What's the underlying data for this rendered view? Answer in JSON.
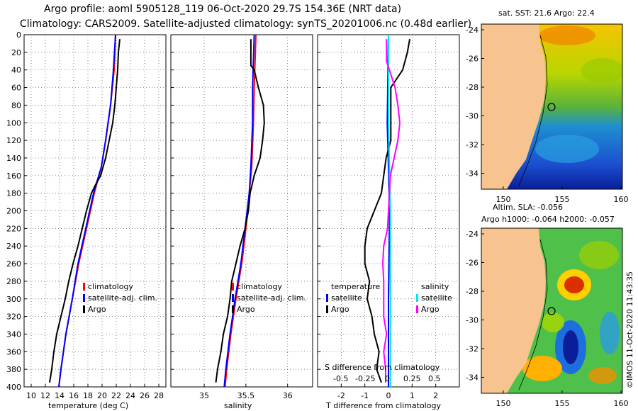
{
  "header": {
    "line1": "Argo profile: aoml 5905128_119 06-Oct-2020 29.7S 154.36E (NRT data)",
    "line2": "Climatology: CARS2009. Satellite-adjusted climatology: synTS_20201006.nc (0.48d earlier)"
  },
  "colors": {
    "climatology": "#ff0000",
    "satellite": "#0000ff",
    "argo": "#000000",
    "sat_salinity": "#00e5ff",
    "argo_salinity": "#ff00ff",
    "land": "#f7c38e"
  },
  "chart_data": [
    {
      "type": "line",
      "id": "temperature",
      "xlabel": "temperature (deg C)",
      "ylabel": "",
      "xlim": [
        9,
        29
      ],
      "ylim": [
        400,
        0
      ],
      "xticks": [
        10,
        12,
        14,
        16,
        18,
        20,
        22,
        24,
        26,
        28
      ],
      "yticks": [
        0,
        20,
        40,
        60,
        80,
        100,
        120,
        140,
        160,
        180,
        200,
        220,
        240,
        260,
        280,
        300,
        320,
        340,
        360,
        380,
        400
      ],
      "legend": [
        "climatology",
        "satellite-adj. clim.",
        "Argo"
      ],
      "series": [
        {
          "name": "climatology",
          "color": "#ff0000",
          "depth": [
            0,
            40,
            80,
            120,
            150,
            180,
            220,
            260,
            300,
            340,
            380,
            400
          ],
          "values": [
            21.9,
            21.7,
            21.2,
            20.5,
            19.9,
            18.9,
            17.8,
            16.7,
            15.8,
            14.9,
            14.2,
            13.9
          ]
        },
        {
          "name": "satellite-adj. clim.",
          "color": "#0000ff",
          "depth": [
            0,
            40,
            80,
            120,
            150,
            180,
            220,
            260,
            300,
            340,
            380,
            400
          ],
          "values": [
            21.9,
            21.6,
            21.2,
            20.5,
            19.9,
            18.8,
            17.7,
            16.6,
            15.8,
            14.9,
            14.2,
            13.9
          ]
        },
        {
          "name": "Argo",
          "color": "#000000",
          "depth": [
            5,
            20,
            40,
            60,
            80,
            100,
            120,
            140,
            160,
            170,
            180,
            200,
            220,
            240,
            260,
            280,
            300,
            320,
            340,
            360,
            380,
            395
          ],
          "values": [
            22.5,
            22.3,
            22.2,
            22.0,
            21.8,
            21.5,
            21.0,
            20.5,
            19.8,
            19.1,
            18.5,
            17.8,
            17.2,
            16.6,
            15.9,
            15.3,
            14.8,
            14.2,
            13.6,
            13.2,
            12.9,
            12.6
          ]
        }
      ]
    },
    {
      "type": "line",
      "id": "salinity",
      "xlabel": "salinity",
      "ylabel": "",
      "xlim": [
        34.6,
        36.3
      ],
      "ylim": [
        400,
        0
      ],
      "xticks": [
        35,
        35.5,
        36
      ],
      "legend": [
        "climatology",
        "satellite-adj. clim.",
        "Argo"
      ],
      "series": [
        {
          "name": "climatology",
          "color": "#ff0000",
          "depth": [
            0,
            60,
            100,
            150,
            180,
            220,
            260,
            300,
            340,
            380,
            400
          ],
          "values": [
            35.62,
            35.6,
            35.59,
            35.57,
            35.54,
            35.5,
            35.45,
            35.38,
            35.32,
            35.27,
            35.25
          ]
        },
        {
          "name": "satellite-adj. clim.",
          "color": "#0000ff",
          "depth": [
            0,
            60,
            100,
            150,
            180,
            220,
            260,
            300,
            340,
            380,
            400
          ],
          "values": [
            35.6,
            35.58,
            35.58,
            35.56,
            35.54,
            35.49,
            35.44,
            35.37,
            35.31,
            35.26,
            35.24
          ]
        },
        {
          "name": "Argo",
          "color": "#000000",
          "depth": [
            5,
            20,
            35,
            40,
            60,
            80,
            100,
            120,
            140,
            160,
            180,
            200,
            220,
            240,
            260,
            280,
            300,
            320,
            340,
            360,
            380,
            395
          ],
          "values": [
            35.56,
            35.56,
            35.56,
            35.6,
            35.65,
            35.71,
            35.72,
            35.7,
            35.67,
            35.6,
            35.55,
            35.53,
            35.49,
            35.43,
            35.38,
            35.33,
            35.31,
            35.28,
            35.23,
            35.2,
            35.16,
            35.14
          ]
        }
      ]
    },
    {
      "type": "line",
      "id": "difference",
      "xlabel": "T difference from climatology",
      "ylabel": "",
      "xlim": [
        -3,
        3
      ],
      "ylim": [
        400,
        0
      ],
      "xticks": [
        -2,
        -1,
        0,
        1,
        2
      ],
      "top_axis_label": "S difference from climatology",
      "top_ticks": [
        "-0.5",
        "-0.25",
        "0",
        "0.25",
        "0.5"
      ],
      "legend_temperature_title": "temperature",
      "legend_salinity_title": "salinity",
      "legend_temperature": [
        "satellite",
        "Argo"
      ],
      "legend_salinity": [
        "satellite",
        "Argo"
      ],
      "series": [
        {
          "name": "T satellite",
          "color": "#0000ff",
          "depth": [
            0,
            100,
            200,
            300,
            400
          ],
          "values": [
            0.0,
            -0.05,
            0.05,
            0.0,
            0.0
          ]
        },
        {
          "name": "T Argo",
          "color": "#000000",
          "depth": [
            5,
            20,
            40,
            60,
            80,
            100,
            120,
            140,
            160,
            180,
            200,
            220,
            240,
            260,
            280,
            300,
            320,
            340,
            360,
            380,
            395
          ],
          "values": [
            0.9,
            0.8,
            0.6,
            0.1,
            0.1,
            0.1,
            0.1,
            -0.1,
            -0.2,
            -0.3,
            -0.6,
            -0.9,
            -1.0,
            -1.0,
            -0.8,
            -0.9,
            -0.7,
            -0.6,
            -0.4,
            -0.5,
            -0.3
          ]
        },
        {
          "name": "S satellite",
          "color": "#00e5ff",
          "depth": [
            0,
            100,
            200,
            300,
            400
          ],
          "values": [
            0.0,
            0.0,
            0.02,
            0.02,
            0.02
          ]
        },
        {
          "name": "S Argo",
          "color": "#ff00ff",
          "depth": [
            5,
            30,
            40,
            60,
            80,
            100,
            120,
            140,
            160,
            180,
            200,
            220,
            240,
            260,
            280,
            300,
            320,
            340,
            360,
            380,
            395
          ],
          "values": [
            -0.02,
            -0.02,
            0.01,
            0.07,
            0.1,
            0.12,
            0.1,
            0.06,
            0.02,
            0.01,
            0.0,
            -0.01,
            -0.05,
            -0.06,
            -0.05,
            -0.05,
            -0.05,
            -0.02,
            -0.05,
            -0.03,
            -0.03
          ]
        }
      ]
    }
  ],
  "maps": {
    "sst_title": "sat. SST: 21.6 Argo: 22.4",
    "sla_title1": "Altim. SLA: -0.056",
    "sla_title2": "Argo h1000: -0.064 h2000: -0.057",
    "lat_ticks": [
      "-24",
      "-26",
      "-28",
      "-30",
      "-32",
      "-34"
    ],
    "lon_ticks": [
      "150",
      "155",
      "160"
    ]
  },
  "credit": "©IMOS 11-Oct-2020 11:43:35"
}
